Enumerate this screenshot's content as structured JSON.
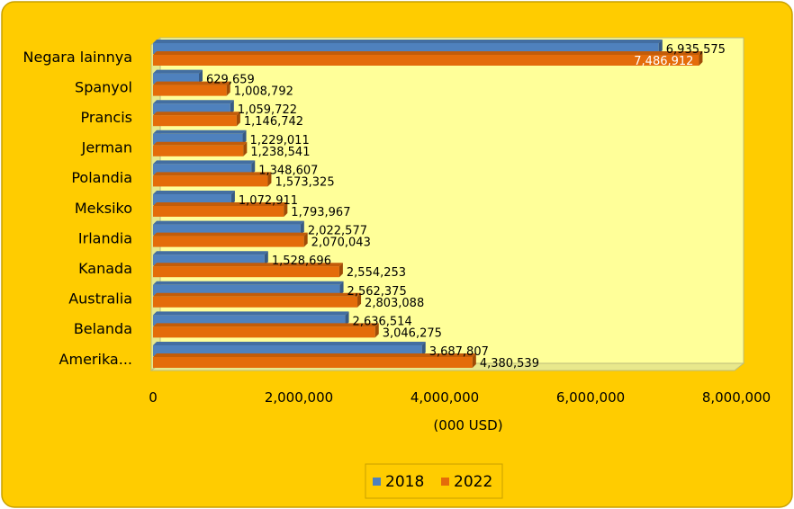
{
  "chart_data": {
    "type": "bar",
    "orientation": "horizontal",
    "categories": [
      "Negara lainnya",
      "Spanyol",
      "Prancis",
      "Jerman",
      "Polandia",
      "Meksiko",
      "Irlandia",
      "Kanada",
      "Australia",
      "Belanda",
      "Amerika..."
    ],
    "series": [
      {
        "name": "2018",
        "color": "#4F81BD",
        "values": [
          6935575,
          629659,
          1059722,
          1229011,
          1348607,
          1072911,
          2022577,
          1528696,
          2562375,
          2636514,
          3687807
        ],
        "labels": [
          "6,935,575",
          "629,659",
          "1,059,722",
          "1,229,011",
          "1,348,607",
          "1,072,911",
          "2,022,577",
          "1,528,696",
          "2,562,375",
          "2,636,514",
          "3,687,807"
        ]
      },
      {
        "name": "2022",
        "color": "#E46C0A",
        "values": [
          7486912,
          1008792,
          1146742,
          1238541,
          1573325,
          1793967,
          2070043,
          2554253,
          2803088,
          3046275,
          4380539
        ],
        "labels": [
          "7,486,912",
          "1,008,792",
          "1,146,742",
          "1,238,541",
          "1,573,325",
          "1,793,967",
          "2,070,043",
          "2,554,253",
          "2,803,088",
          "3,046,275",
          "4,380,539"
        ]
      }
    ],
    "xlabel": "(000 USD)",
    "xlim": [
      0,
      8000000
    ],
    "xticks": [
      0,
      2000000,
      4000000,
      6000000,
      8000000
    ],
    "xtick_labels": [
      "0",
      "2,000,000",
      "4,000,000",
      "6,000,000",
      "8,000,000"
    ],
    "legend_position": "bottom",
    "grid": false,
    "style": {
      "background": "#FFCC00",
      "plot_background": "#FFFF99",
      "frame_border": "#C8A000"
    }
  }
}
